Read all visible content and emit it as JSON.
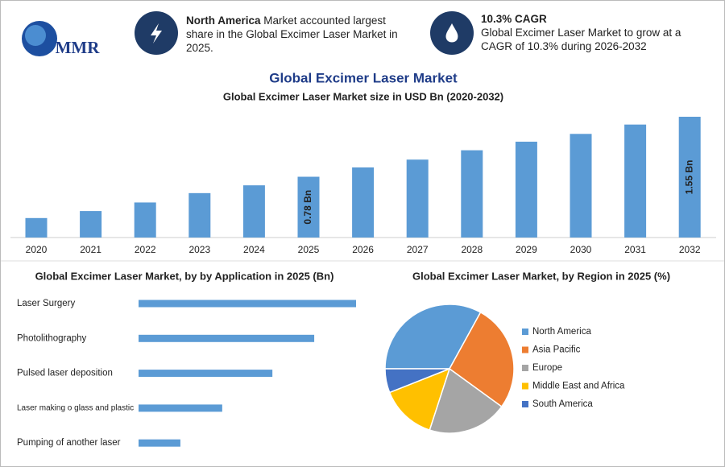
{
  "header": {
    "logo": "MMR",
    "highlight_1": {
      "bold": "North America",
      "text": "Market accounted largest share in the Global Excimer Laser Market in 2025."
    },
    "highlight_2": {
      "title": "10.3% CAGR",
      "text": "Global Excimer Laser Market to grow at a CAGR of 10.3% during 2026-2032"
    }
  },
  "title": "Global Excimer Laser Market",
  "chart_data": [
    {
      "type": "bar",
      "title": "Global Excimer Laser Market size in USD Bn (2020-2032)",
      "color": "#5b9bd5",
      "categories": [
        "2020",
        "2021",
        "2022",
        "2023",
        "2024",
        "2025",
        "2026",
        "2027",
        "2028",
        "2029",
        "2030",
        "2031",
        "2032"
      ],
      "values": [
        0.25,
        0.34,
        0.45,
        0.57,
        0.67,
        0.78,
        0.9,
        1.0,
        1.12,
        1.23,
        1.33,
        1.45,
        1.55
      ],
      "value_labels": [
        null,
        null,
        null,
        null,
        null,
        "0.78 Bn",
        null,
        null,
        null,
        null,
        null,
        null,
        "1.55 Bn"
      ]
    },
    {
      "type": "barh",
      "title": "Global Excimer Laser Market, by by Application in 2025 (Bn)",
      "color": "#5b9bd5",
      "categories": [
        "Laser Surgery",
        "Photolithography",
        "Pulsed laser deposition",
        "Laser making o glass and plastic",
        "Pumping of another laser"
      ],
      "values": [
        0.26,
        0.21,
        0.16,
        0.1,
        0.05
      ]
    },
    {
      "type": "pie",
      "title": "Global Excimer Laser Market, by Region in 2025 (%)",
      "categories": [
        "North America",
        "Asia Pacific",
        "Europe",
        "Middle East and Africa",
        "South America"
      ],
      "values": [
        33,
        27,
        20,
        14,
        6
      ],
      "colors": [
        "#5b9bd5",
        "#ed7d31",
        "#a5a5a5",
        "#ffc000",
        "#4472c4"
      ]
    }
  ]
}
